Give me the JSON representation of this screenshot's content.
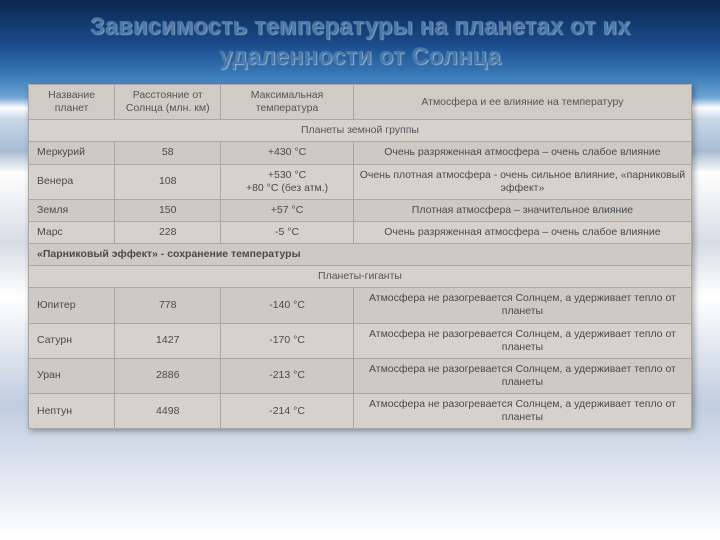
{
  "title": "Зависимость температуры на планетах от  их удаленности  от Солнца",
  "columns": [
    "Название планет",
    "Расстояние от Солнца (млн. км)",
    "Максимальная температура",
    "Атмосфера и ее влияние на температуру"
  ],
  "section1": "Планеты земной группы",
  "inner": [
    {
      "name": "Меркурий",
      "dist": "58",
      "temp": "+430 °С",
      "atm": "Очень разряженная атмосфера – очень слабое влияние"
    },
    {
      "name": "Венера",
      "dist": "108",
      "temp": "+530 °С\n+80 °С (без атм.)",
      "atm": "Очень плотная атмосфера - очень сильное влияние, «парниковый эффект»"
    },
    {
      "name": "Земля",
      "dist": "150",
      "temp": "+57 °С",
      "atm": "Плотная атмосфера – значительное влияние"
    },
    {
      "name": "Марс",
      "dist": "228",
      "temp": "-5 °С",
      "atm": "Очень разряженная атмосфера – очень слабое влияние"
    }
  ],
  "note": "«Парниковый эффект» - сохранение температуры",
  "section2": "Планеты-гиганты",
  "outer": [
    {
      "name": "Юпитер",
      "dist": "778",
      "temp": "-140 °С",
      "atm": "Атмосфера  не разогревается Солнцем, а удерживает тепло от планеты"
    },
    {
      "name": "Сатурн",
      "dist": "1427",
      "temp": "-170 °С",
      "atm": "Атмосфера  не разогревается Солнцем, а удерживает тепло от планеты"
    },
    {
      "name": "Уран",
      "dist": "2886",
      "temp": "-213 °С",
      "atm": "Атмосфера  не разогревается Солнцем, а удерживает тепло от планеты"
    },
    {
      "name": "Нептун",
      "dist": "4498",
      "temp": "-214 °С",
      "atm": "Атмосфера  не разогревается Солнцем, а удерживает тепло от планеты"
    }
  ]
}
